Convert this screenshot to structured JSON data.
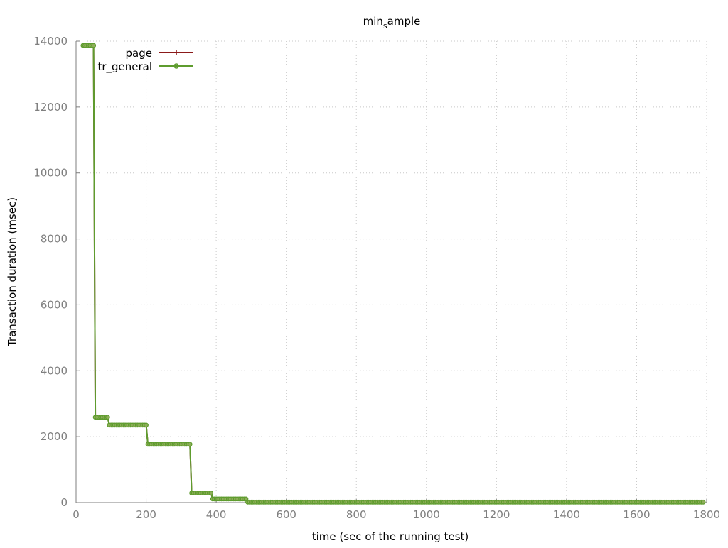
{
  "chart_data": {
    "type": "line",
    "title": "min",
    "title_sub": "s",
    "title_rest": "ample",
    "xlabel": "time (sec of the running test)",
    "ylabel": "Transaction duration (msec)",
    "xlim": [
      0,
      1800
    ],
    "ylim": [
      0,
      14000
    ],
    "xticks": [
      0,
      200,
      400,
      600,
      800,
      1000,
      1200,
      1400,
      1600,
      1800
    ],
    "yticks": [
      0,
      2000,
      4000,
      6000,
      8000,
      10000,
      12000,
      14000
    ],
    "grid": true,
    "legend_position": "top-left",
    "steps": [
      {
        "from": 20,
        "to": 50,
        "y": 13870
      },
      {
        "from": 50,
        "to": 50,
        "y": 13870
      },
      {
        "from": 55,
        "to": 90,
        "y": 2590
      },
      {
        "from": 95,
        "to": 200,
        "y": 2350
      },
      {
        "from": 205,
        "to": 325,
        "y": 1770
      },
      {
        "from": 330,
        "to": 385,
        "y": 290
      },
      {
        "from": 390,
        "to": 485,
        "y": 110
      },
      {
        "from": 490,
        "to": 1790,
        "y": 15
      }
    ],
    "series": [
      {
        "name": "page",
        "color": "#8b1a1a",
        "marker": "plus"
      },
      {
        "name": "tr_general",
        "color": "#5e9c2e",
        "marker": "circle"
      }
    ]
  }
}
